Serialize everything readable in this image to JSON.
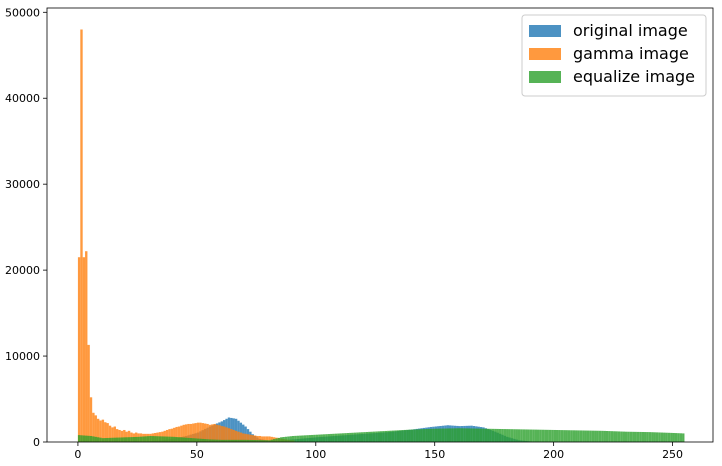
{
  "chart_data": {
    "type": "histogram",
    "bin_width": 1,
    "xlim": [
      -13,
      267
    ],
    "ylim": [
      0,
      50500
    ],
    "xticks": [
      0,
      50,
      100,
      150,
      200,
      250
    ],
    "yticks": [
      0,
      10000,
      20000,
      30000,
      40000,
      50000
    ],
    "grid": false,
    "legend_position": "top-right",
    "series": [
      {
        "name": "original image",
        "color": "#1f77b4",
        "points": [
          [
            30,
            100
          ],
          [
            35,
            200
          ],
          [
            40,
            400
          ],
          [
            45,
            700
          ],
          [
            50,
            1100
          ],
          [
            55,
            1800
          ],
          [
            60,
            2400
          ],
          [
            63,
            2850
          ],
          [
            66,
            2700
          ],
          [
            70,
            1800
          ],
          [
            73,
            900
          ],
          [
            76,
            350
          ],
          [
            80,
            150
          ],
          [
            85,
            200
          ],
          [
            90,
            300
          ],
          [
            100,
            550
          ],
          [
            110,
            750
          ],
          [
            120,
            950
          ],
          [
            130,
            1150
          ],
          [
            140,
            1450
          ],
          [
            148,
            1750
          ],
          [
            155,
            1950
          ],
          [
            160,
            1850
          ],
          [
            165,
            1900
          ],
          [
            170,
            1700
          ],
          [
            175,
            1200
          ],
          [
            180,
            600
          ],
          [
            185,
            200
          ],
          [
            190,
            60
          ],
          [
            200,
            30
          ],
          [
            254,
            30
          ]
        ]
      },
      {
        "name": "gamma image",
        "color": "#ff7f0e",
        "points": [
          [
            0,
            21500
          ],
          [
            1,
            48000
          ],
          [
            2,
            21500
          ],
          [
            3,
            22200
          ],
          [
            4,
            11300
          ],
          [
            5,
            5200
          ],
          [
            6,
            3400
          ],
          [
            7,
            3100
          ],
          [
            8,
            2700
          ],
          [
            9,
            2500
          ],
          [
            10,
            2600
          ],
          [
            11,
            2300
          ],
          [
            12,
            2200
          ],
          [
            13,
            1900
          ],
          [
            14,
            1700
          ],
          [
            15,
            1800
          ],
          [
            16,
            1500
          ],
          [
            17,
            1400
          ],
          [
            18,
            1300
          ],
          [
            19,
            1400
          ],
          [
            20,
            1200
          ],
          [
            21,
            1300
          ],
          [
            22,
            1100
          ],
          [
            23,
            1000
          ],
          [
            24,
            1100
          ],
          [
            25,
            1000
          ],
          [
            26,
            1000
          ],
          [
            27,
            950
          ],
          [
            28,
            950
          ],
          [
            29,
            950
          ],
          [
            30,
            950
          ],
          [
            31,
            1000
          ],
          [
            32,
            1050
          ],
          [
            33,
            1100
          ],
          [
            34,
            1150
          ],
          [
            35,
            1200
          ],
          [
            36,
            1300
          ],
          [
            37,
            1400
          ],
          [
            38,
            1500
          ],
          [
            39,
            1550
          ],
          [
            40,
            1650
          ],
          [
            41,
            1750
          ],
          [
            42,
            1800
          ],
          [
            43,
            1900
          ],
          [
            44,
            2000
          ],
          [
            45,
            2050
          ],
          [
            46,
            2100
          ],
          [
            47,
            2100
          ],
          [
            48,
            2150
          ],
          [
            49,
            2200
          ],
          [
            50,
            2250
          ],
          [
            51,
            2250
          ],
          [
            52,
            2200
          ],
          [
            53,
            2150
          ],
          [
            54,
            2100
          ],
          [
            55,
            2000
          ],
          [
            56,
            2050
          ],
          [
            57,
            2100
          ],
          [
            58,
            2000
          ],
          [
            59,
            1950
          ],
          [
            60,
            1850
          ],
          [
            61,
            1800
          ],
          [
            62,
            1700
          ],
          [
            63,
            1600
          ],
          [
            64,
            1500
          ],
          [
            65,
            1400
          ],
          [
            66,
            1300
          ],
          [
            67,
            1200
          ],
          [
            68,
            1100
          ],
          [
            69,
            1000
          ],
          [
            70,
            950
          ],
          [
            71,
            900
          ],
          [
            72,
            850
          ],
          [
            73,
            800
          ],
          [
            74,
            750
          ],
          [
            75,
            700
          ],
          [
            76,
            700
          ],
          [
            77,
            650
          ],
          [
            78,
            650
          ],
          [
            79,
            650
          ],
          [
            80,
            650
          ],
          [
            81,
            600
          ],
          [
            82,
            550
          ],
          [
            83,
            500
          ],
          [
            84,
            450
          ],
          [
            85,
            400
          ],
          [
            86,
            350
          ],
          [
            87,
            300
          ],
          [
            88,
            250
          ],
          [
            89,
            200
          ],
          [
            90,
            200
          ]
        ]
      },
      {
        "name": "equalize image",
        "color": "#2ca02c",
        "points": [
          [
            0,
            800
          ],
          [
            5,
            700
          ],
          [
            10,
            450
          ],
          [
            20,
            550
          ],
          [
            25,
            600
          ],
          [
            30,
            700
          ],
          [
            35,
            650
          ],
          [
            40,
            600
          ],
          [
            45,
            500
          ],
          [
            50,
            400
          ],
          [
            55,
            300
          ],
          [
            60,
            250
          ],
          [
            70,
            250
          ],
          [
            80,
            200
          ],
          [
            85,
            550
          ],
          [
            90,
            700
          ],
          [
            100,
            850
          ],
          [
            110,
            1000
          ],
          [
            120,
            1150
          ],
          [
            130,
            1300
          ],
          [
            140,
            1450
          ],
          [
            150,
            1550
          ],
          [
            160,
            1600
          ],
          [
            170,
            1550
          ],
          [
            180,
            1500
          ],
          [
            190,
            1450
          ],
          [
            200,
            1400
          ],
          [
            210,
            1350
          ],
          [
            220,
            1300
          ],
          [
            230,
            1200
          ],
          [
            240,
            1150
          ],
          [
            250,
            1050
          ],
          [
            254,
            1000
          ]
        ]
      }
    ]
  }
}
